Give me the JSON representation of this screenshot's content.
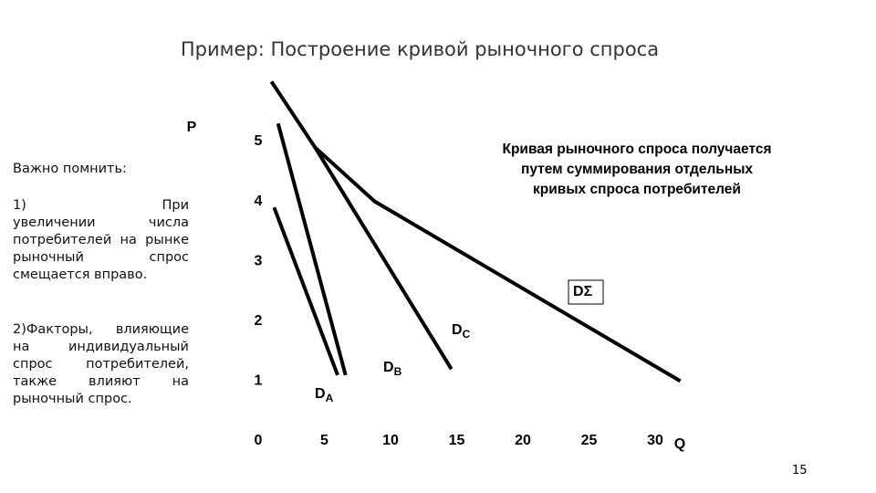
{
  "slide": {
    "title": "Пример: Построение кривой рыночного спроса",
    "note_heading": "Важно помнить:",
    "note_1": "1)            При увеличении числа потребителей на рынке рыночный спрос смещается вправо.",
    "note_2": "2)Факторы, влияющие на индивидуальный спрос потребителей, также влияют на рыночный спрос.",
    "page_number": "15"
  },
  "chart_data": {
    "type": "line",
    "annotation": "Кривая рыночного спроса получается путем суммирования отдельных кривых спроса потребителей",
    "y_label": "P",
    "x_label": "Q",
    "xlim": [
      0,
      30
    ],
    "ylim": [
      0,
      5
    ],
    "xticks": [
      0,
      5,
      10,
      15,
      20,
      25,
      30
    ],
    "yticks": [
      1,
      2,
      3,
      4,
      5
    ],
    "color": "#000000",
    "series": [
      {
        "name": "D",
        "subscript": "A",
        "x": [
          1.2,
          6.0
        ],
        "values": [
          3.9,
          1.1
        ]
      },
      {
        "name": "D",
        "subscript": "B",
        "x": [
          1.5,
          6.6
        ],
        "values": [
          5.3,
          1.1
        ]
      },
      {
        "name": "D",
        "subscript": "C",
        "x": [
          4.3,
          14.6
        ],
        "values": [
          4.9,
          1.2
        ]
      },
      {
        "name": "D",
        "subscript": "Σ",
        "x": [
          1.0,
          4.3,
          8.8,
          31.9
        ],
        "values": [
          6.0,
          4.9,
          4.0,
          1.0
        ]
      }
    ]
  }
}
